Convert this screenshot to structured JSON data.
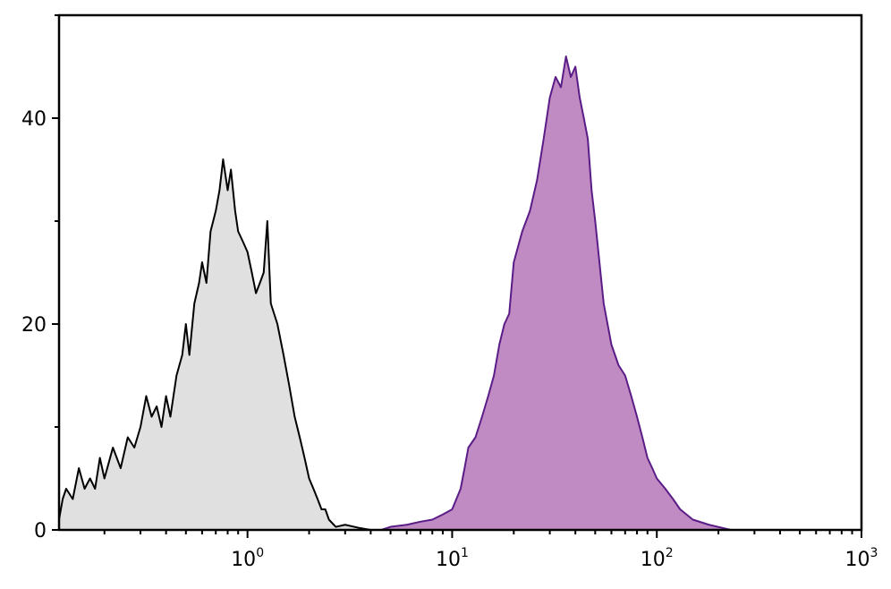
{
  "chart_data": {
    "type": "area",
    "title": "",
    "xlabel": "",
    "ylabel": "",
    "x_scale": "log",
    "xlim": [
      0.12,
      1000
    ],
    "ylim": [
      0,
      50
    ],
    "y_ticks": [
      {
        "value": 0,
        "label": "0"
      },
      {
        "value": 20,
        "label": "20"
      },
      {
        "value": 40,
        "label": "40"
      }
    ],
    "x_ticks": [
      {
        "value": 1,
        "base": "10",
        "exp": "0"
      },
      {
        "value": 10,
        "base": "10",
        "exp": "1"
      },
      {
        "value": 100,
        "base": "10",
        "exp": "2"
      },
      {
        "value": 1000,
        "base": "10",
        "exp": "3"
      }
    ],
    "grid": false,
    "series": [
      {
        "fill": "#e0e0e0",
        "stroke": "#000000",
        "points": [
          [
            0.12,
            1
          ],
          [
            0.125,
            3
          ],
          [
            0.13,
            4
          ],
          [
            0.14,
            3
          ],
          [
            0.15,
            6
          ],
          [
            0.16,
            4
          ],
          [
            0.17,
            5
          ],
          [
            0.18,
            4
          ],
          [
            0.19,
            7
          ],
          [
            0.2,
            5
          ],
          [
            0.22,
            8
          ],
          [
            0.24,
            6
          ],
          [
            0.26,
            9
          ],
          [
            0.28,
            8
          ],
          [
            0.3,
            10
          ],
          [
            0.32,
            13
          ],
          [
            0.34,
            11
          ],
          [
            0.36,
            12
          ],
          [
            0.38,
            10
          ],
          [
            0.4,
            13
          ],
          [
            0.42,
            11
          ],
          [
            0.45,
            15
          ],
          [
            0.48,
            17
          ],
          [
            0.5,
            20
          ],
          [
            0.52,
            17
          ],
          [
            0.55,
            22
          ],
          [
            0.58,
            24
          ],
          [
            0.6,
            26
          ],
          [
            0.63,
            24
          ],
          [
            0.66,
            29
          ],
          [
            0.7,
            31
          ],
          [
            0.73,
            33
          ],
          [
            0.76,
            36
          ],
          [
            0.8,
            33
          ],
          [
            0.83,
            35
          ],
          [
            0.87,
            31
          ],
          [
            0.9,
            29
          ],
          [
            0.95,
            28
          ],
          [
            1.0,
            27
          ],
          [
            1.05,
            25
          ],
          [
            1.1,
            23
          ],
          [
            1.15,
            24
          ],
          [
            1.2,
            25
          ],
          [
            1.25,
            30
          ],
          [
            1.3,
            22
          ],
          [
            1.4,
            20
          ],
          [
            1.5,
            17
          ],
          [
            1.6,
            14
          ],
          [
            1.7,
            11
          ],
          [
            1.8,
            9
          ],
          [
            1.9,
            7
          ],
          [
            2.0,
            5
          ],
          [
            2.1,
            4
          ],
          [
            2.2,
            3
          ],
          [
            2.3,
            2
          ],
          [
            2.4,
            2
          ],
          [
            2.5,
            1
          ],
          [
            2.7,
            0.3
          ],
          [
            3.0,
            0.5
          ],
          [
            3.5,
            0.2
          ],
          [
            4.0,
            0
          ]
        ]
      },
      {
        "fill": "#c08bc3",
        "stroke": "#5a1c86",
        "points": [
          [
            4.5,
            0
          ],
          [
            5,
            0.3
          ],
          [
            6,
            0.5
          ],
          [
            7,
            0.8
          ],
          [
            8,
            1
          ],
          [
            9,
            1.5
          ],
          [
            10,
            2
          ],
          [
            11,
            4
          ],
          [
            11.5,
            6
          ],
          [
            12,
            8
          ],
          [
            13,
            9
          ],
          [
            14,
            11
          ],
          [
            15,
            13
          ],
          [
            16,
            15
          ],
          [
            17,
            18
          ],
          [
            18,
            20
          ],
          [
            19,
            21
          ],
          [
            20,
            26
          ],
          [
            22,
            29
          ],
          [
            24,
            31
          ],
          [
            26,
            34
          ],
          [
            28,
            38
          ],
          [
            30,
            42
          ],
          [
            32,
            44
          ],
          [
            34,
            43
          ],
          [
            36,
            46
          ],
          [
            38,
            44
          ],
          [
            40,
            45
          ],
          [
            42,
            42
          ],
          [
            44,
            40
          ],
          [
            46,
            38
          ],
          [
            48,
            33
          ],
          [
            50,
            30
          ],
          [
            55,
            22
          ],
          [
            60,
            18
          ],
          [
            65,
            16
          ],
          [
            70,
            15
          ],
          [
            75,
            13
          ],
          [
            80,
            11
          ],
          [
            85,
            9
          ],
          [
            90,
            7
          ],
          [
            95,
            6
          ],
          [
            100,
            5
          ],
          [
            110,
            4
          ],
          [
            120,
            3
          ],
          [
            130,
            2
          ],
          [
            150,
            1
          ],
          [
            180,
            0.5
          ],
          [
            230,
            0
          ]
        ]
      }
    ]
  }
}
